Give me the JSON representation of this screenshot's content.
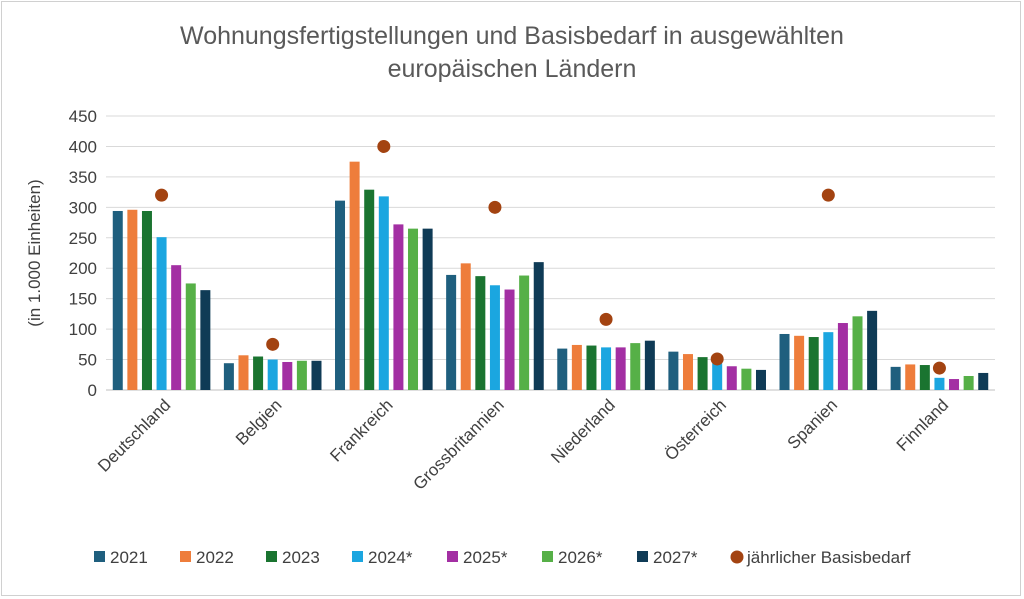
{
  "chart_data": {
    "type": "bar",
    "title": [
      "Wohnungsfertigstellungen und Basisbedarf in ausgewählten",
      "europäischen Ländern"
    ],
    "xlabel": "",
    "ylabel": "(in 1.000 Einheiten)",
    "ylim": [
      0,
      450
    ],
    "yticks": [
      0,
      50,
      100,
      150,
      200,
      250,
      300,
      350,
      400,
      450
    ],
    "grid": true,
    "legend_position": "bottom",
    "categories": [
      "Deutschland",
      "Belgien",
      "Frankreich",
      "Grossbritannien",
      "Niederland",
      "Österreich",
      "Spanien",
      "Finnland"
    ],
    "series": [
      {
        "name": "2021",
        "type": "bar",
        "color": "#1f5f7e",
        "values": [
          294,
          44,
          311,
          189,
          68,
          63,
          92,
          38
        ]
      },
      {
        "name": "2022",
        "type": "bar",
        "color": "#ee7d3b",
        "values": [
          296,
          57,
          375,
          208,
          74,
          59,
          89,
          42
        ]
      },
      {
        "name": "2023",
        "type": "bar",
        "color": "#1a7430",
        "values": [
          294,
          55,
          329,
          187,
          73,
          54,
          87,
          41
        ]
      },
      {
        "name": "2024*",
        "type": "bar",
        "color": "#1ba6e0",
        "values": [
          251,
          50,
          318,
          172,
          70,
          44,
          95,
          20
        ]
      },
      {
        "name": "2025*",
        "type": "bar",
        "color": "#a32fa3",
        "values": [
          205,
          46,
          272,
          165,
          70,
          39,
          110,
          18
        ]
      },
      {
        "name": "2026*",
        "type": "bar",
        "color": "#56b047",
        "values": [
          175,
          48,
          265,
          188,
          77,
          35,
          121,
          23
        ]
      },
      {
        "name": "2027*",
        "type": "bar",
        "color": "#0f3b56",
        "values": [
          164,
          48,
          265,
          210,
          81,
          33,
          130,
          28
        ]
      },
      {
        "name": "jährlicher Basisbedarf",
        "type": "scatter",
        "color": "#a34311",
        "values": [
          320,
          75,
          400,
          300,
          116,
          51,
          320,
          36
        ]
      }
    ]
  }
}
